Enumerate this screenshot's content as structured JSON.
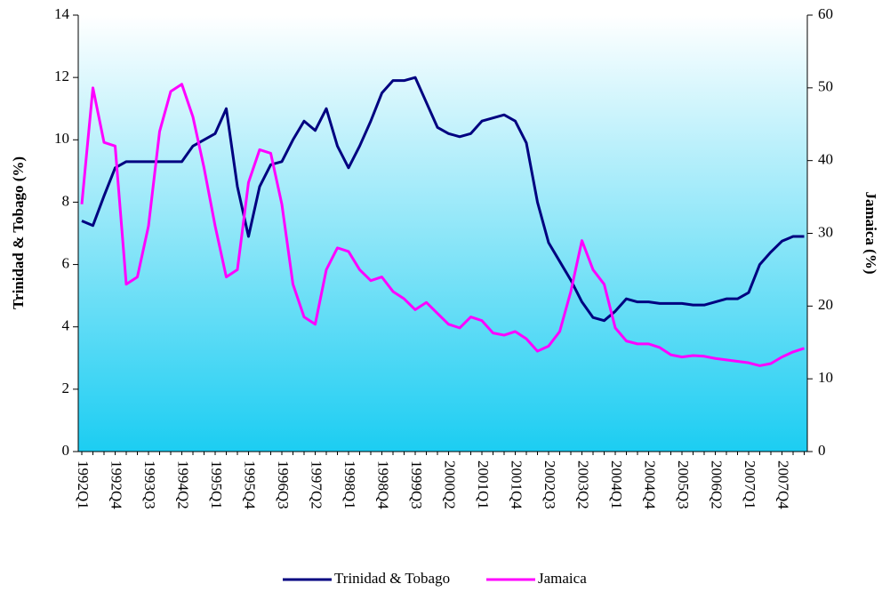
{
  "chart_data": {
    "type": "line",
    "categories": [
      "1992Q1",
      null,
      null,
      "1992Q4",
      null,
      null,
      "1993Q3",
      null,
      null,
      "1994Q2",
      null,
      null,
      "1995Q1",
      null,
      null,
      "1995Q4",
      null,
      null,
      "1996Q3",
      null,
      null,
      "1997Q2",
      null,
      null,
      "1998Q1",
      null,
      null,
      "1998Q4",
      null,
      null,
      "1999Q3",
      null,
      null,
      "2000Q2",
      null,
      null,
      "2001Q1",
      null,
      null,
      "2001Q4",
      null,
      null,
      "2002Q3",
      null,
      null,
      "2003Q2",
      null,
      null,
      "2004Q1",
      null,
      null,
      "2004Q4",
      null,
      null,
      "2005Q3",
      null,
      null,
      "2006Q2",
      null,
      null,
      "2007Q1",
      null,
      null,
      "2007Q4",
      null,
      null
    ],
    "series": [
      {
        "name": "Trinidad & Tobago",
        "color": "#000080",
        "values": [
          7.4,
          7.25,
          8.2,
          9.1,
          9.3,
          9.3,
          9.3,
          9.3,
          9.3,
          9.3,
          9.8,
          10.0,
          10.2,
          11.0,
          8.5,
          6.9,
          8.5,
          9.2,
          9.3,
          10.0,
          10.6,
          10.3,
          11.0,
          9.8,
          9.1,
          9.8,
          10.6,
          11.5,
          11.9,
          11.9,
          12.0,
          11.2,
          10.4,
          10.2,
          10.1,
          10.2,
          10.6,
          10.7,
          10.8,
          10.6,
          9.9,
          8.0,
          6.7,
          6.1,
          5.5,
          4.8,
          4.3,
          4.2,
          4.5,
          4.9,
          4.8,
          4.8,
          4.75,
          4.75,
          4.75,
          4.7,
          4.7,
          4.8,
          4.9,
          4.9,
          5.1,
          6.0,
          6.4,
          6.75,
          6.9,
          6.9
        ]
      },
      {
        "name": "Jamaica",
        "color": "#ff00ff",
        "axis": "y2",
        "values": [
          34,
          50,
          42.5,
          42,
          23,
          24,
          31,
          44,
          49.5,
          50.5,
          46,
          39,
          31,
          24,
          25,
          37,
          41.5,
          41,
          34,
          23,
          18.5,
          17.5,
          25,
          28,
          27.5,
          25,
          23.5,
          24,
          22,
          21,
          19.5,
          20.5,
          19,
          17.5,
          17,
          18.5,
          18,
          16.3,
          16,
          16.5,
          15.5,
          13.8,
          14.5,
          16.5,
          22,
          29,
          25,
          23,
          17,
          15.2,
          14.8,
          14.8,
          14.3,
          13.3,
          13,
          13.2,
          13.1,
          12.8,
          12.6,
          12.4,
          12.2,
          11.8,
          12.1,
          13,
          13.7,
          14.2
        ]
      }
    ],
    "ylabel": "Trinidad & Tobago (%)",
    "y2label": "Jamaica (%)",
    "ylim": [
      0,
      14
    ],
    "yticks": [
      0,
      2,
      4,
      6,
      8,
      10,
      12,
      14
    ],
    "y2lim": [
      0,
      60
    ],
    "y2ticks": [
      0,
      10,
      20,
      30,
      40,
      50,
      60
    ],
    "legend": "bottom"
  }
}
